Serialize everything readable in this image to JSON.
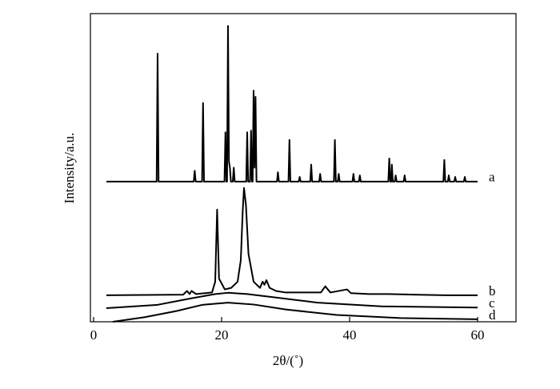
{
  "chart_data": {
    "type": "line",
    "x_label": "2θ/(˚)",
    "y_label": "Intensity/a.u.",
    "xlim": [
      -0.5,
      66
    ],
    "ylim": [
      0,
      100
    ],
    "xticks": [
      0,
      20,
      40,
      60
    ],
    "series": [
      {
        "name": "a",
        "color": "#000000",
        "x": [
          2,
          9.85,
          10.0,
          10.15,
          10.3,
          15.65,
          15.8,
          15.95,
          16.95,
          17.1,
          17.25,
          20.45,
          20.6,
          20.75,
          20.85,
          21.0,
          21.15,
          21.3,
          21.45,
          21.75,
          21.9,
          22.05,
          23.85,
          24.0,
          24.15,
          24.45,
          24.6,
          24.75,
          24.85,
          25.0,
          25.15,
          25.3,
          25.45,
          28.65,
          28.8,
          28.95,
          30.45,
          30.6,
          30.75,
          32.05,
          32.2,
          32.35,
          33.85,
          34.0,
          34.15,
          35.25,
          35.4,
          35.55,
          37.55,
          37.7,
          37.85,
          38.15,
          38.3,
          38.45,
          40.45,
          40.6,
          40.75,
          41.45,
          41.6,
          41.75,
          46.05,
          46.2,
          46.35,
          46.5,
          46.6,
          46.75,
          47.05,
          47.2,
          47.35,
          48.45,
          48.6,
          48.75,
          54.65,
          54.8,
          54.95,
          55.35,
          55.5,
          55.65,
          56.35,
          56.5,
          56.65,
          57.85,
          58.0,
          58.15,
          60
        ],
        "values": [
          45.5,
          45.5,
          87,
          45.5,
          45.5,
          45.5,
          49,
          45.5,
          45.5,
          71,
          45.5,
          45.5,
          61.5,
          45.5,
          45.5,
          96,
          52,
          50,
          45.5,
          45.5,
          50,
          45.5,
          45.5,
          61.5,
          45.5,
          45.5,
          62,
          45.5,
          45.5,
          75,
          50,
          73,
          45.5,
          45.5,
          48.5,
          45.5,
          45.5,
          59,
          45.5,
          45.5,
          47,
          45.5,
          45.5,
          51,
          45.5,
          45.5,
          48,
          45.5,
          45.5,
          59,
          45.5,
          45.5,
          48,
          45.5,
          45.5,
          48,
          45.5,
          45.5,
          47.5,
          45.5,
          45.5,
          53,
          45.5,
          45.5,
          51,
          45.5,
          45.5,
          47.5,
          45.5,
          45.5,
          47.5,
          45.5,
          45.5,
          52.5,
          45.5,
          45.5,
          47.5,
          45.5,
          45.5,
          47,
          45.5,
          45.5,
          47,
          45.5,
          45.5
        ]
      },
      {
        "name": "b",
        "color": "#000000",
        "x": [
          2,
          14,
          14.6,
          15,
          15.3,
          16,
          18.5,
          19.0,
          19.3,
          19.6,
          20.5,
          21.5,
          22.5,
          23.0,
          23.3,
          23.5,
          23.8,
          24.2,
          25,
          26,
          26.4,
          26.7,
          27.0,
          27.5,
          28.5,
          30,
          33,
          35.5,
          36.2,
          37,
          39.6,
          40.2,
          43,
          46,
          50,
          55,
          60
        ],
        "values": [
          8.6,
          8.8,
          10,
          9,
          10,
          9,
          9.5,
          13,
          36.4,
          14,
          10.5,
          11,
          13,
          20,
          36,
          43.4,
          38,
          22,
          13,
          11,
          13,
          12,
          13.5,
          11,
          10,
          9.5,
          9.5,
          9.5,
          11.5,
          9.5,
          10.5,
          9.3,
          9,
          9,
          8.8,
          8.6,
          8.6
        ]
      },
      {
        "name": "c",
        "color": "#000000",
        "x": [
          2,
          10,
          15,
          19,
          21,
          24,
          28,
          35,
          45,
          60
        ],
        "values": [
          4.4,
          5.5,
          7.5,
          9,
          9.4,
          9,
          8,
          6.2,
          5,
          4.6
        ]
      },
      {
        "name": "d",
        "color": "#000000",
        "x": [
          3,
          8,
          13,
          17,
          21,
          25,
          30,
          38,
          48,
          60
        ],
        "values": [
          0,
          1.5,
          3.5,
          5.5,
          6.2,
          5.6,
          4,
          2.2,
          1.2,
          0.8
        ]
      }
    ]
  }
}
